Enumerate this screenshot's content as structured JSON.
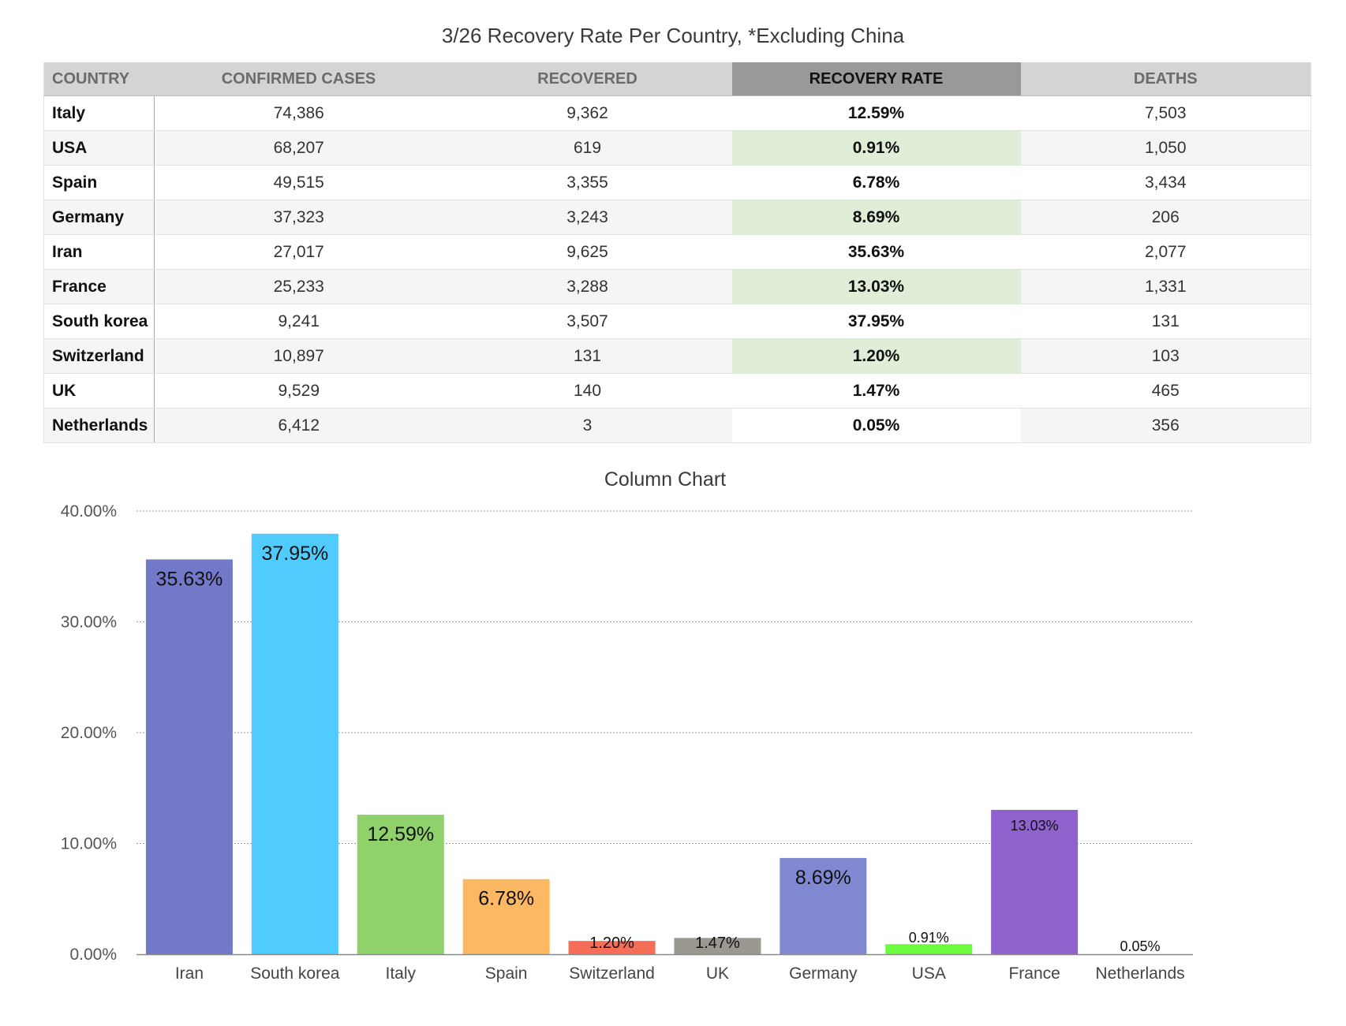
{
  "title": "3/26 Recovery Rate Per Country, *Excluding China",
  "table": {
    "headers": [
      "COUNTRY",
      "CONFIRMED CASES",
      "RECOVERED",
      "RECOVERY RATE",
      "DEATHS"
    ],
    "rows": [
      {
        "country": "Italy",
        "confirmed": "74,386",
        "recovered": "9,362",
        "rate": "12.59%",
        "deaths": "7,503"
      },
      {
        "country": "USA",
        "confirmed": "68,207",
        "recovered": "619",
        "rate": "0.91%",
        "deaths": "1,050"
      },
      {
        "country": "Spain",
        "confirmed": "49,515",
        "recovered": "3,355",
        "rate": "6.78%",
        "deaths": "3,434"
      },
      {
        "country": "Germany",
        "confirmed": "37,323",
        "recovered": "3,243",
        "rate": "8.69%",
        "deaths": "206"
      },
      {
        "country": "Iran",
        "confirmed": "27,017",
        "recovered": "9,625",
        "rate": "35.63%",
        "deaths": "2,077"
      },
      {
        "country": "France",
        "confirmed": "25,233",
        "recovered": "3,288",
        "rate": "13.03%",
        "deaths": "1,331"
      },
      {
        "country": "South korea",
        "confirmed": "9,241",
        "recovered": "3,507",
        "rate": "37.95%",
        "deaths": "131"
      },
      {
        "country": "Switzerland",
        "confirmed": "10,897",
        "recovered": "131",
        "rate": "1.20%",
        "deaths": "103"
      },
      {
        "country": "UK",
        "confirmed": "9,529",
        "recovered": "140",
        "rate": "1.47%",
        "deaths": "465"
      },
      {
        "country": "Netherlands",
        "confirmed": "6,412",
        "recovered": "3",
        "rate": "0.05%",
        "deaths": "356"
      }
    ]
  },
  "chart_data": {
    "type": "bar",
    "title": "Column Chart",
    "categories": [
      "Iran",
      "South korea",
      "Italy",
      "Spain",
      "Switzerland",
      "UK",
      "Germany",
      "USA",
      "France",
      "Netherlands"
    ],
    "values": [
      35.63,
      37.95,
      12.59,
      6.78,
      1.2,
      1.47,
      8.69,
      0.91,
      13.03,
      0.05
    ],
    "value_labels": [
      "35.63%",
      "37.95%",
      "12.59%",
      "6.78%",
      "1.20%",
      "1.47%",
      "8.69%",
      "0.91%",
      "13.03%",
      "0.05%"
    ],
    "colors": [
      "#7279c8",
      "#50cbfd",
      "#8fd16a",
      "#fdb863",
      "#f66d58",
      "#9b9891",
      "#7f88d1",
      "#6cfb3e",
      "#9062cd",
      "#ffffff"
    ],
    "ylim": [
      0,
      40
    ],
    "yticks": [
      "0.00%",
      "10.00%",
      "20.00%",
      "30.00%",
      "40.00%"
    ],
    "xlabel": "",
    "ylabel": "",
    "grid": true,
    "legend": "none"
  }
}
